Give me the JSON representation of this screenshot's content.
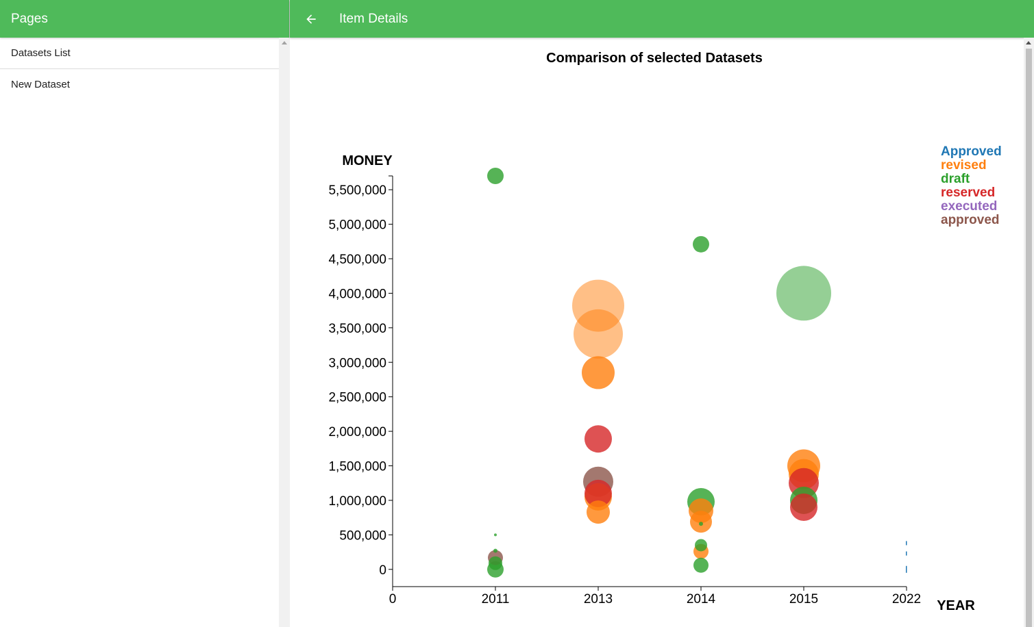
{
  "sidebar": {
    "title": "Pages",
    "items": [
      {
        "label": "Datasets List"
      },
      {
        "label": "New Dataset"
      }
    ]
  },
  "header": {
    "title": "Item Details",
    "back_icon": "arrow-left-icon"
  },
  "colors": {
    "header_green": "#4fba5a"
  },
  "chart_data": {
    "type": "scatter",
    "title": "Comparison of selected Datasets",
    "xlabel": "YEAR",
    "ylabel": "MONEY",
    "x_ticks": [
      "0",
      "2011",
      "2013",
      "2014",
      "2015",
      "2022"
    ],
    "y_ticks": [
      "0",
      "500,000",
      "1,000,000",
      "1,500,000",
      "2,000,000",
      "2,500,000",
      "3,000,000",
      "3,500,000",
      "4,000,000",
      "4,500,000",
      "5,000,000",
      "5,500,000"
    ],
    "y_tick_values": [
      0,
      500000,
      1000000,
      1500000,
      2000000,
      2500000,
      3000000,
      3500000,
      4000000,
      4500000,
      5000000,
      5500000
    ],
    "ylim": [
      -250000,
      5700000
    ],
    "legend_position": "top-right",
    "series": [
      {
        "name": "Approved",
        "color": "#1f77b4",
        "points": [
          {
            "x": "2022",
            "y": 380000,
            "size": 1
          },
          {
            "x": "2022",
            "y": 230000,
            "size": 1
          },
          {
            "x": "2022",
            "y": 20000,
            "size": 1
          },
          {
            "x": "2022",
            "y": -20000,
            "size": 1
          }
        ]
      },
      {
        "name": "revised",
        "color": "#ff7f0e",
        "points": [
          {
            "x": "2013",
            "y": 3820000,
            "size": 38
          },
          {
            "x": "2013",
            "y": 3410000,
            "size": 36
          },
          {
            "x": "2013",
            "y": 2850000,
            "size": 24
          },
          {
            "x": "2013",
            "y": 1050000,
            "size": 20
          },
          {
            "x": "2013",
            "y": 830000,
            "size": 17
          },
          {
            "x": "2014",
            "y": 850000,
            "size": 18
          },
          {
            "x": "2014",
            "y": 690000,
            "size": 16
          },
          {
            "x": "2014",
            "y": 260000,
            "size": 11
          },
          {
            "x": "2015",
            "y": 1500000,
            "size": 24
          },
          {
            "x": "2015",
            "y": 1380000,
            "size": 22
          }
        ]
      },
      {
        "name": "draft",
        "color": "#2ca02c",
        "points": [
          {
            "x": "2011",
            "y": 5700000,
            "size": 12
          },
          {
            "x": "2011",
            "y": 500000,
            "size": 2
          },
          {
            "x": "2011",
            "y": 270000,
            "size": 3
          },
          {
            "x": "2011",
            "y": 90000,
            "size": 10
          },
          {
            "x": "2011",
            "y": 0,
            "size": 12
          },
          {
            "x": "2014",
            "y": 4710000,
            "size": 12
          },
          {
            "x": "2014",
            "y": 980000,
            "size": 20
          },
          {
            "x": "2014",
            "y": 660000,
            "size": 3
          },
          {
            "x": "2014",
            "y": 350000,
            "size": 9
          },
          {
            "x": "2014",
            "y": 60000,
            "size": 11
          },
          {
            "x": "2015",
            "y": 4000000,
            "size": 40
          },
          {
            "x": "2015",
            "y": 1000000,
            "size": 20
          }
        ]
      },
      {
        "name": "reserved",
        "color": "#d62728",
        "points": [
          {
            "x": "2013",
            "y": 1890000,
            "size": 20
          },
          {
            "x": "2013",
            "y": 1100000,
            "size": 20
          },
          {
            "x": "2015",
            "y": 1250000,
            "size": 22
          },
          {
            "x": "2015",
            "y": 900000,
            "size": 20
          }
        ]
      },
      {
        "name": "executed",
        "color": "#9467bd",
        "points": []
      },
      {
        "name": "approved",
        "color": "#8c564b",
        "points": [
          {
            "x": "2011",
            "y": 170000,
            "size": 11
          },
          {
            "x": "2013",
            "y": 1270000,
            "size": 22
          }
        ]
      }
    ]
  }
}
